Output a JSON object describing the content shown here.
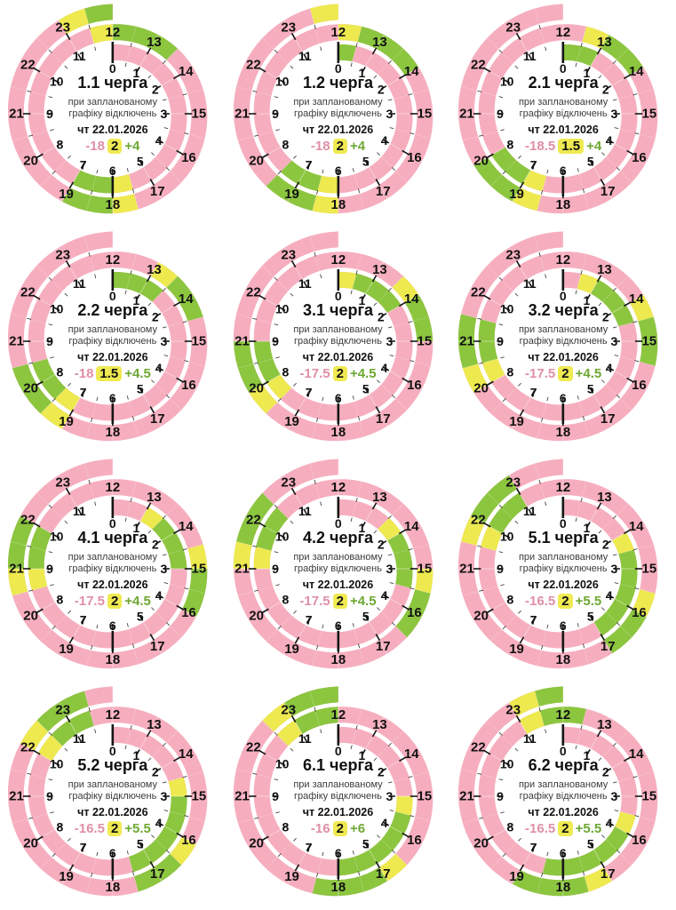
{
  "page": {
    "background": "#ffffff",
    "grid_columns": 3,
    "grid_rows": 4
  },
  "colors": {
    "outage_band": "#F6AEBE",
    "maybe_band": "#EDE94F",
    "power_band": "#8CC63F",
    "outage_text": "#E08FA5",
    "power_text": "#6EA832",
    "maybe_chip_bg": "#EFEA52",
    "tick": "#161616",
    "label_text": "#111111",
    "subtitle_text": "#3b3b3b",
    "separator": "#ffffff"
  },
  "subtitle_line1": "при запланованому",
  "subtitle_line2": "графіку відключень",
  "date_label": "чт 22.01.2026",
  "chart_data": {
    "type": "clock-spiral-grid",
    "description": "24-hour two-turn spiral clock charts of planned power outage schedules per queue; inner turn hours 0-11, outer turn hours 12-23; pink = outage hours, yellow = uncertain half-hours, green = power-on hours; segments given as [startHour, endHour]; remainder of the day is pink",
    "hours_inner": [
      0,
      1,
      2,
      3,
      4,
      5,
      6,
      7,
      8,
      9,
      10,
      11
    ],
    "hours_outer": [
      12,
      13,
      14,
      15,
      16,
      17,
      18,
      19,
      20,
      21,
      22,
      23
    ],
    "charts": [
      {
        "title": "1.1 черга",
        "off_hours": "-18",
        "maybe_hours": "2",
        "on_hours": "+4",
        "maybe": [
          [
            5.5,
            6
          ],
          [
            11.5,
            12
          ],
          [
            17.5,
            18
          ],
          [
            23,
            23.5
          ]
        ],
        "on": [
          [
            6,
            7
          ],
          [
            12,
            13.5
          ],
          [
            18,
            19
          ],
          [
            23.5,
            24
          ]
        ]
      },
      {
        "title": "1.2 черга",
        "off_hours": "-18",
        "maybe_hours": "2",
        "on_hours": "+4",
        "maybe": [
          [
            6,
            6.5
          ],
          [
            12,
            12.5
          ],
          [
            18,
            18.5
          ],
          [
            23.5,
            24
          ]
        ],
        "on": [
          [
            0,
            0.5
          ],
          [
            6.5,
            7.5
          ],
          [
            12.5,
            14
          ],
          [
            18.5,
            19.5
          ]
        ]
      },
      {
        "title": "2.1 черга",
        "off_hours": "-18.5",
        "maybe_hours": "1.5",
        "on_hours": "+4",
        "maybe": [
          [
            6.5,
            7
          ],
          [
            12.5,
            13
          ],
          [
            18.5,
            19
          ]
        ],
        "on": [
          [
            0,
            1
          ],
          [
            7,
            8
          ],
          [
            13,
            14
          ],
          [
            19,
            20
          ]
        ]
      },
      {
        "title": "2.2 черга",
        "off_hours": "-18",
        "maybe_hours": "1.5",
        "on_hours": "+4.5",
        "maybe": [
          [
            7,
            7.5
          ],
          [
            13,
            13.5
          ],
          [
            19,
            19.5
          ]
        ],
        "on": [
          [
            0,
            1.5
          ],
          [
            7.5,
            8.5
          ],
          [
            13.5,
            14.5
          ],
          [
            19.5,
            20.5
          ]
        ]
      },
      {
        "title": "3.1 черга",
        "off_hours": "-17.5",
        "maybe_hours": "2",
        "on_hours": "+4.5",
        "maybe": [
          [
            0,
            0.5
          ],
          [
            7.5,
            8
          ],
          [
            13.5,
            14
          ],
          [
            19.5,
            20
          ]
        ],
        "on": [
          [
            0.5,
            2
          ],
          [
            8,
            9
          ],
          [
            14,
            15
          ],
          [
            20,
            21
          ]
        ]
      },
      {
        "title": "3.2 черга",
        "off_hours": "-17.5",
        "maybe_hours": "2",
        "on_hours": "+4.5",
        "maybe": [
          [
            0.5,
            1
          ],
          [
            8,
            8.5
          ],
          [
            14,
            14.5
          ],
          [
            20,
            20.5
          ]
        ],
        "on": [
          [
            1,
            2.5
          ],
          [
            8.5,
            9.5
          ],
          [
            14.5,
            15.5
          ],
          [
            20.5,
            21.5
          ]
        ]
      },
      {
        "title": "4.1 черга",
        "off_hours": "-17.5",
        "maybe_hours": "2",
        "on_hours": "+4.5",
        "maybe": [
          [
            1,
            1.5
          ],
          [
            8.5,
            9
          ],
          [
            14.5,
            15
          ],
          [
            20.5,
            21
          ]
        ],
        "on": [
          [
            1.5,
            3
          ],
          [
            9,
            10
          ],
          [
            15,
            16
          ],
          [
            21,
            22
          ]
        ]
      },
      {
        "title": "4.2 черга",
        "off_hours": "-17.5",
        "maybe_hours": "2",
        "on_hours": "+4.5",
        "maybe": [
          [
            1.5,
            2
          ],
          [
            9,
            9.5
          ],
          [
            15,
            15.5
          ],
          [
            21,
            21.5
          ]
        ],
        "on": [
          [
            2,
            3.5
          ],
          [
            9.5,
            10.5
          ],
          [
            15.5,
            16.5
          ],
          [
            21.5,
            22.5
          ]
        ]
      },
      {
        "title": "5.1 черга",
        "off_hours": "-16.5",
        "maybe_hours": "2",
        "on_hours": "+5.5",
        "maybe": [
          [
            2,
            2.5
          ],
          [
            9.5,
            10
          ],
          [
            15.5,
            16
          ],
          [
            21.5,
            22
          ]
        ],
        "on": [
          [
            2.5,
            5
          ],
          [
            10,
            11
          ],
          [
            16,
            17
          ],
          [
            22,
            23
          ]
        ]
      },
      {
        "title": "5.2 черга",
        "off_hours": "-16.5",
        "maybe_hours": "2",
        "on_hours": "+5.5",
        "maybe": [
          [
            2.5,
            3
          ],
          [
            10,
            10.5
          ],
          [
            16,
            16.5
          ],
          [
            22,
            22.5
          ]
        ],
        "on": [
          [
            3,
            5.5
          ],
          [
            10.5,
            11.5
          ],
          [
            16.5,
            17.5
          ],
          [
            22.5,
            23.5
          ]
        ]
      },
      {
        "title": "6.1 черга",
        "off_hours": "-16",
        "maybe_hours": "2",
        "on_hours": "+6",
        "maybe": [
          [
            3,
            3.5
          ],
          [
            10.5,
            11
          ],
          [
            16.5,
            17
          ],
          [
            22.5,
            23
          ]
        ],
        "on": [
          [
            3.5,
            6
          ],
          [
            11,
            12
          ],
          [
            17,
            18.5
          ],
          [
            23,
            24
          ]
        ]
      },
      {
        "title": "6.2 черга",
        "off_hours": "-16.5",
        "maybe_hours": "2",
        "on_hours": "+5.5",
        "maybe": [
          [
            3.5,
            4
          ],
          [
            11,
            11.5
          ],
          [
            17,
            17.5
          ],
          [
            23,
            23.5
          ]
        ],
        "on": [
          [
            4,
            6.5
          ],
          [
            11.5,
            12.5
          ],
          [
            17.5,
            19
          ],
          [
            23.5,
            24
          ]
        ]
      }
    ]
  }
}
